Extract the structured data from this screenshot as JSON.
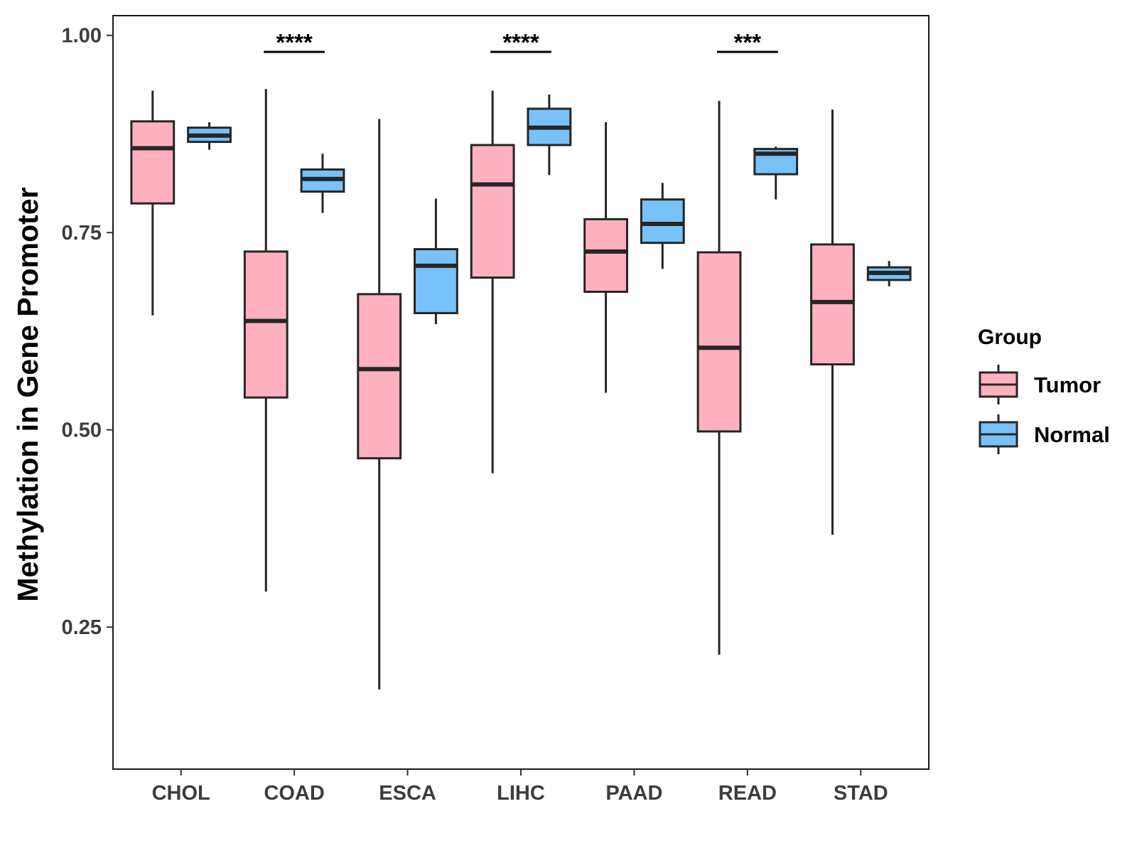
{
  "chart_data": {
    "type": "boxplot",
    "title": "",
    "xlabel": "",
    "ylabel": "Methylation in Gene Promoter",
    "ylim": [
      0.07,
      1.025
    ],
    "yticks": [
      0.25,
      0.5,
      0.75,
      1.0
    ],
    "ytick_labels": [
      "0.25",
      "0.50",
      "0.75",
      "1.00"
    ],
    "grid": false,
    "categories": [
      "CHOL",
      "COAD",
      "ESCA",
      "LIHC",
      "PAAD",
      "READ",
      "STAD"
    ],
    "legend": {
      "title": "Group",
      "position": "right",
      "entries": [
        {
          "name": "Tumor",
          "color": "#FFB0C1"
        },
        {
          "name": "Normal",
          "color": "#78C1F9"
        }
      ]
    },
    "series": [
      {
        "name": "Tumor",
        "color": "#FFB0C1",
        "boxes": [
          {
            "min": 0.645,
            "q1": 0.787,
            "median": 0.857,
            "q3": 0.891,
            "max": 0.93
          },
          {
            "min": 0.295,
            "q1": 0.541,
            "median": 0.638,
            "q3": 0.726,
            "max": 0.932
          },
          {
            "min": 0.171,
            "q1": 0.464,
            "median": 0.577,
            "q3": 0.672,
            "max": 0.894
          },
          {
            "min": 0.445,
            "q1": 0.693,
            "median": 0.811,
            "q3": 0.861,
            "max": 0.93
          },
          {
            "min": 0.547,
            "q1": 0.675,
            "median": 0.726,
            "q3": 0.767,
            "max": 0.89
          },
          {
            "min": 0.215,
            "q1": 0.498,
            "median": 0.604,
            "q3": 0.725,
            "max": 0.917
          },
          {
            "min": 0.367,
            "q1": 0.583,
            "median": 0.662,
            "q3": 0.735,
            "max": 0.906
          }
        ]
      },
      {
        "name": "Normal",
        "color": "#78C1F9",
        "boxes": [
          {
            "min": 0.855,
            "q1": 0.865,
            "median": 0.873,
            "q3": 0.883,
            "max": 0.89
          },
          {
            "min": 0.775,
            "q1": 0.802,
            "median": 0.818,
            "q3": 0.83,
            "max": 0.85
          },
          {
            "min": 0.634,
            "q1": 0.648,
            "median": 0.708,
            "q3": 0.729,
            "max": 0.793
          },
          {
            "min": 0.823,
            "q1": 0.861,
            "median": 0.883,
            "q3": 0.907,
            "max": 0.925
          },
          {
            "min": 0.704,
            "q1": 0.737,
            "median": 0.761,
            "q3": 0.792,
            "max": 0.813
          },
          {
            "min": 0.792,
            "q1": 0.824,
            "median": 0.85,
            "q3": 0.856,
            "max": 0.859
          },
          {
            "min": 0.682,
            "q1": 0.69,
            "median": 0.699,
            "q3": 0.706,
            "max": 0.714
          }
        ]
      }
    ],
    "annotations": [
      {
        "category": "COAD",
        "label": "****"
      },
      {
        "category": "LIHC",
        "label": "****"
      },
      {
        "category": "READ",
        "label": "***"
      }
    ]
  }
}
